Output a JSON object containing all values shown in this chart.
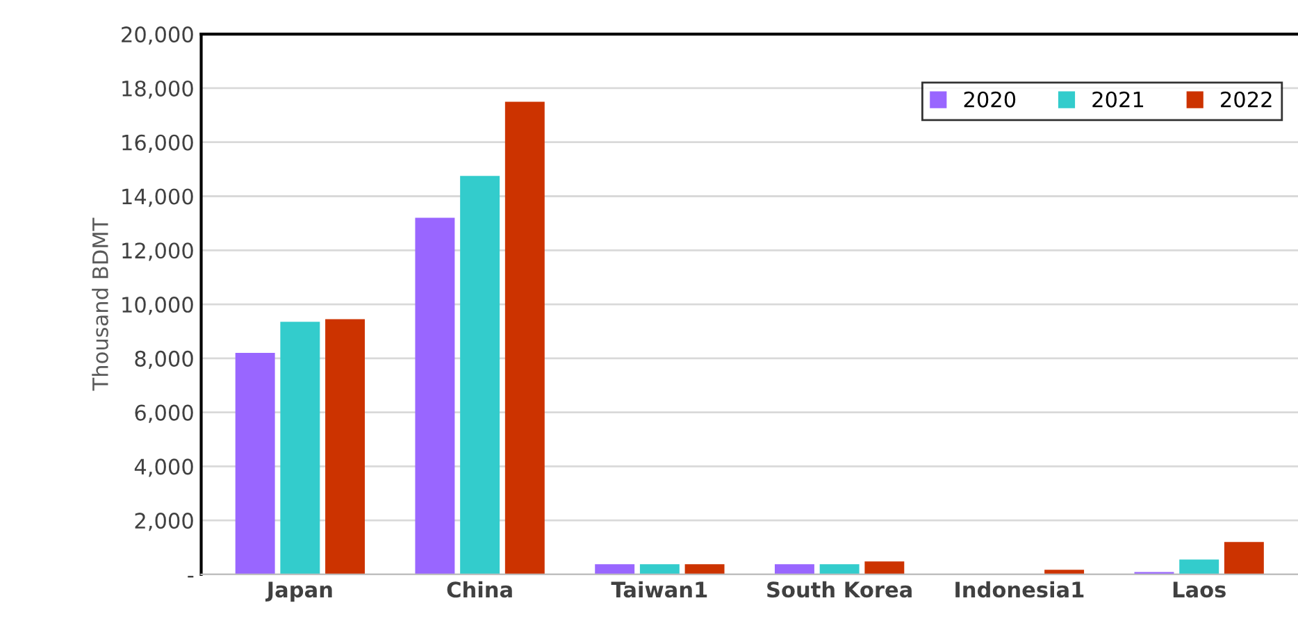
{
  "chart_data": {
    "type": "bar",
    "ylabel": "Thousand BDMT",
    "categories": [
      "Japan",
      "China",
      "Taiwan1",
      "South Korea",
      "Indonesia1",
      "Laos"
    ],
    "series": [
      {
        "name": "2020",
        "color": "#9966ff",
        "values": [
          8200,
          13200,
          380,
          380,
          null,
          90
        ]
      },
      {
        "name": "2021",
        "color": "#33cccc",
        "values": [
          9350,
          14750,
          380,
          380,
          null,
          550
        ]
      },
      {
        "name": "2022",
        "color": "#cc3300",
        "values": [
          9450,
          17500,
          380,
          480,
          170,
          1200
        ]
      }
    ],
    "ylim": [
      0,
      20000
    ],
    "yticks": [
      {
        "value": 0,
        "label": "-"
      },
      {
        "value": 2000,
        "label": "2,000"
      },
      {
        "value": 4000,
        "label": "4,000"
      },
      {
        "value": 6000,
        "label": "6,000"
      },
      {
        "value": 8000,
        "label": "8,000"
      },
      {
        "value": 10000,
        "label": "10,000"
      },
      {
        "value": 12000,
        "label": "12,000"
      },
      {
        "value": 14000,
        "label": "14,000"
      },
      {
        "value": 16000,
        "label": "16,000"
      },
      {
        "value": 18000,
        "label": "18,000"
      },
      {
        "value": 20000,
        "label": "20,000"
      }
    ],
    "grid": "y",
    "legend": "top right"
  }
}
